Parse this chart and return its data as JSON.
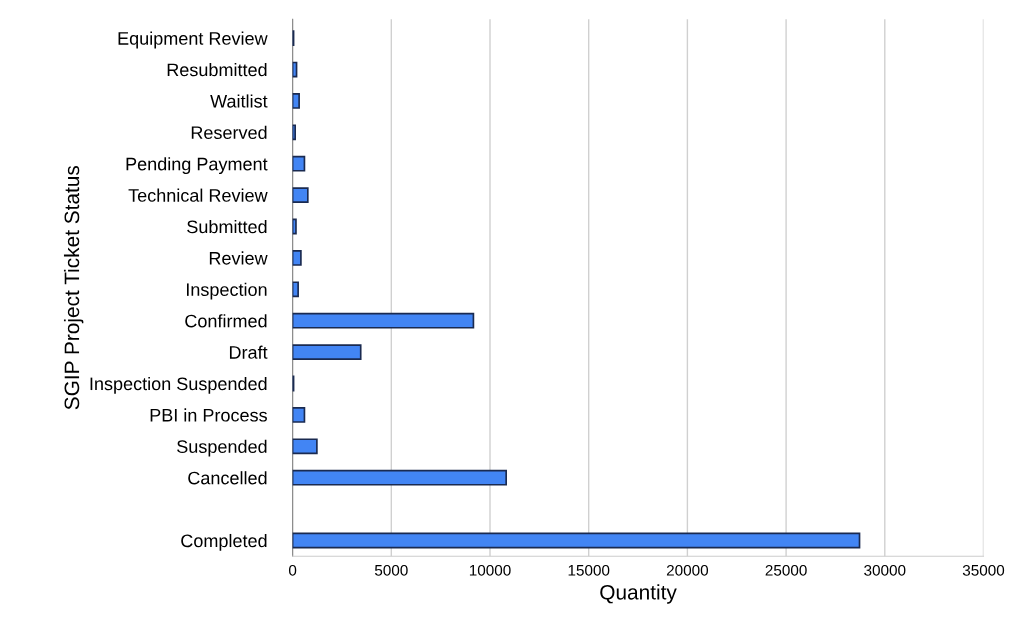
{
  "chart_data": {
    "type": "bar",
    "orientation": "horizontal",
    "xlabel": "Quantity",
    "ylabel": "SGIP Project Ticket Status",
    "categories": [
      "Equipment Review",
      "Resubmitted",
      "Waitlist",
      "Reserved",
      "Pending Payment",
      "Technical Review",
      "Submitted",
      "Review",
      "Inspection",
      "Confirmed",
      "Draft",
      "Inspection Suspended",
      "PBI in Process",
      "Suspended",
      "Cancelled",
      null,
      "Completed"
    ],
    "values": [
      50,
      200,
      330,
      130,
      600,
      770,
      170,
      420,
      280,
      9160,
      3450,
      50,
      600,
      1230,
      10820,
      null,
      28720
    ],
    "color": "#4285f4",
    "xlim": [
      0,
      35000
    ],
    "xticks": [
      0,
      5000,
      10000,
      15000,
      20000,
      25000,
      30000,
      35000
    ],
    "grid": "x"
  }
}
